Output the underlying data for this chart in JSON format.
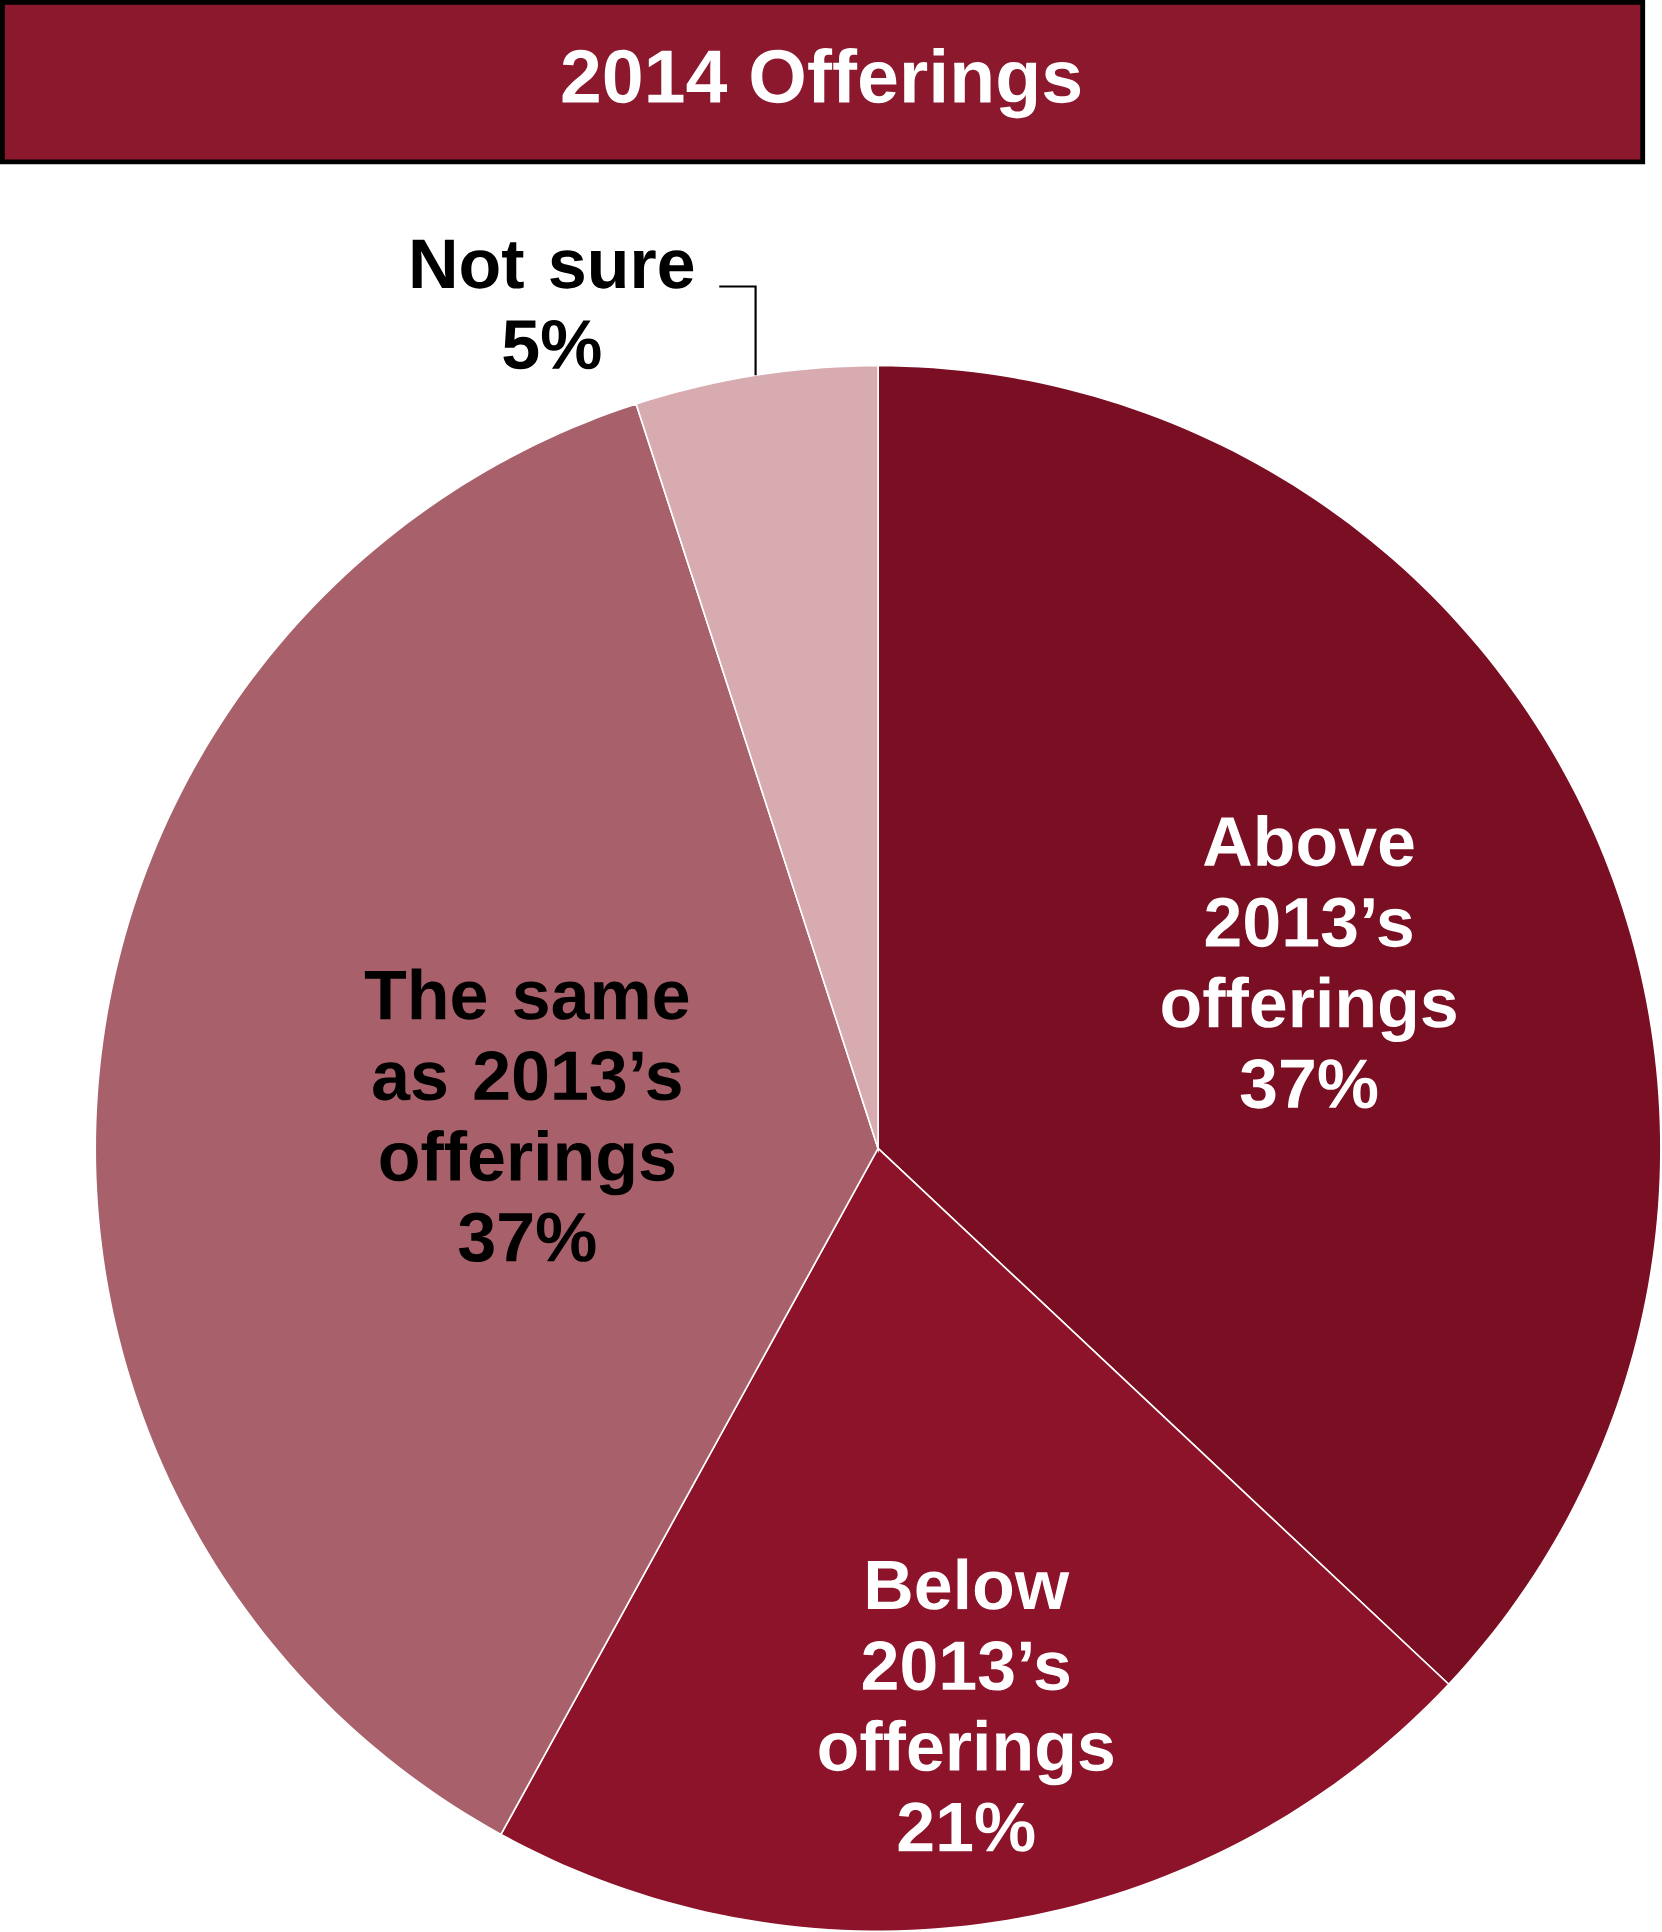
{
  "chart_data": {
    "type": "pie",
    "title": "2014 Offerings",
    "categories": [
      "Above 2013’s offerings",
      "Below 2013’s offerings",
      "The same as 2013’s offerings",
      "Not sure"
    ],
    "values": [
      37,
      21,
      37,
      5
    ],
    "value_labels": [
      "37%",
      "21%",
      "37%",
      "5%"
    ],
    "colors": [
      "#7a0e22",
      "#8c1329",
      "#a8616a",
      "#d8abb1"
    ]
  }
}
